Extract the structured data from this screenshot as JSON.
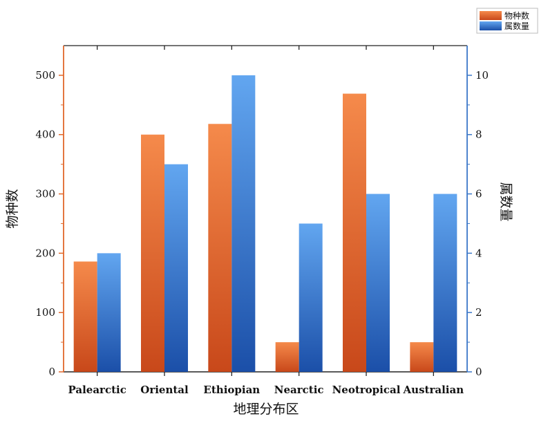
{
  "chart_data": {
    "type": "bar",
    "categories": [
      "Palearctic",
      "Oriental",
      "Ethiopian",
      "Nearctic",
      "Neotropical",
      "Australian"
    ],
    "series": [
      {
        "name": "物种数",
        "axis": "left",
        "values": [
          186,
          400,
          418,
          50,
          469,
          50
        ]
      },
      {
        "name": "属数量",
        "axis": "right",
        "values": [
          4,
          7,
          10,
          5,
          6,
          6
        ]
      }
    ],
    "xlabel": "地理分布区",
    "ylabel_left": "物种数",
    "ylabel_right": "属数量",
    "ylim_left": [
      0,
      550
    ],
    "ylim_right": [
      0,
      11
    ],
    "yticks_left": [
      0,
      100,
      200,
      300,
      400,
      500
    ],
    "yticks_right": [
      0,
      2,
      4,
      6,
      8,
      10
    ],
    "grid": false,
    "legend_position": "top-right",
    "colors": {
      "series_left_top": "#f58a4b",
      "series_left_bottom": "#c8481a",
      "series_right_top": "#62a6f0",
      "series_right_bottom": "#1b4fa8",
      "axis_left": "#e0672a",
      "axis_right": "#3a77c8",
      "axis_frame": "#222222"
    }
  }
}
